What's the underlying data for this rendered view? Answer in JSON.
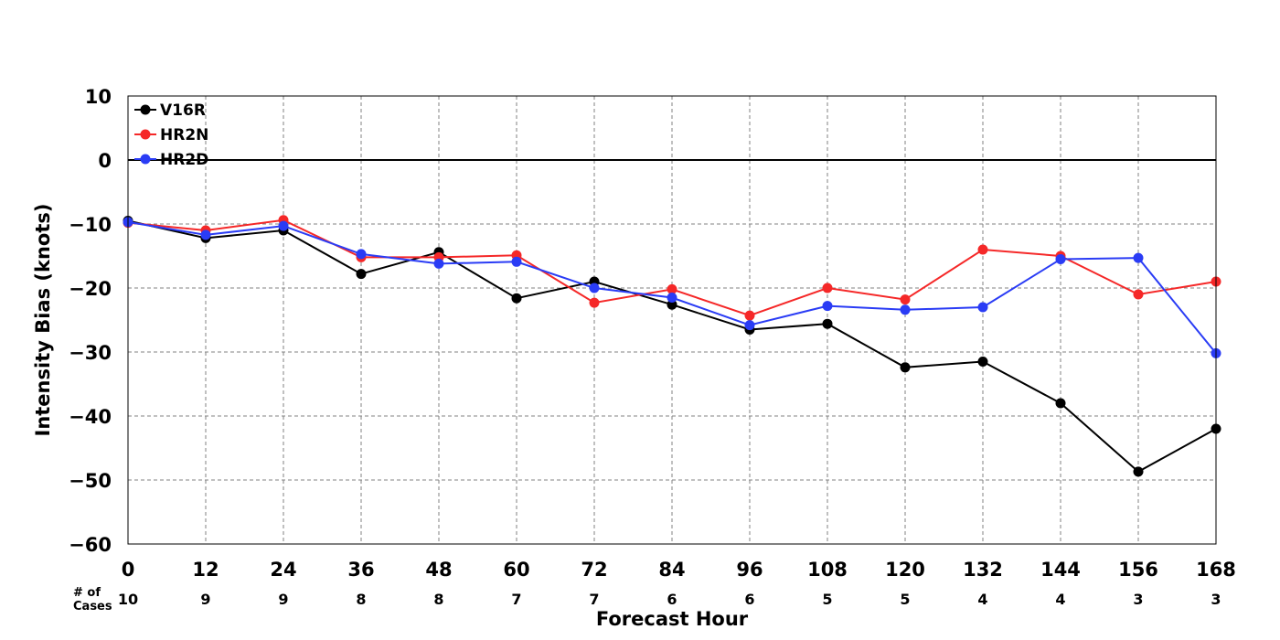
{
  "chart_data": {
    "type": "line",
    "xlabel": "Forecast Hour",
    "ylabel": "Intensity Bias (knots)",
    "x": [
      0,
      12,
      24,
      36,
      48,
      60,
      72,
      84,
      96,
      108,
      120,
      132,
      144,
      156,
      168
    ],
    "xlim": [
      0,
      168
    ],
    "ylim": [
      -60,
      10
    ],
    "yticks": [
      10,
      0,
      -10,
      -20,
      -30,
      -40,
      -50,
      -60
    ],
    "ytick_labels": [
      "10",
      "0",
      "−10",
      "−20",
      "−30",
      "−40",
      "−50",
      "−60"
    ],
    "grid": true,
    "zero_line": true,
    "legend_position": "top-left",
    "series": [
      {
        "name": "V16R",
        "color": "#000000",
        "values": [
          -9.5,
          -12.2,
          -11.0,
          -17.8,
          -14.4,
          -21.6,
          -19.0,
          -22.6,
          -26.5,
          -25.6,
          -32.4,
          -31.5,
          -38.0,
          -48.7,
          -42.0
        ]
      },
      {
        "name": "HR2N",
        "color": "#f52828",
        "values": [
          -9.8,
          -11.0,
          -9.4,
          -15.2,
          -15.2,
          -14.9,
          -22.3,
          -20.2,
          -24.3,
          -20.0,
          -21.8,
          -14.0,
          -15.0,
          -21.0,
          -19.0
        ]
      },
      {
        "name": "HR2D",
        "color": "#2a3cf5",
        "values": [
          -9.7,
          -11.7,
          -10.3,
          -14.7,
          -16.2,
          -15.9,
          -20.0,
          -21.5,
          -25.8,
          -22.8,
          -23.4,
          -23.0,
          -15.5,
          -15.3,
          -30.2
        ]
      }
    ],
    "cases_label": "# of\nCases",
    "cases": [
      10,
      9,
      9,
      8,
      8,
      7,
      7,
      6,
      6,
      5,
      5,
      4,
      4,
      3,
      3
    ]
  }
}
